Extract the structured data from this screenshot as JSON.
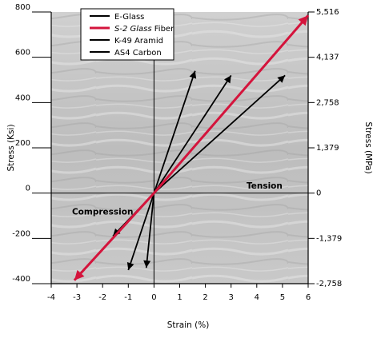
{
  "chart_data": {
    "type": "line",
    "xlabel": "Strain (%)",
    "ylabel": "Stress (Ksi)",
    "y2label": "Stress (MPa)",
    "xlim": [
      -4,
      6
    ],
    "ylim": [
      -400,
      800
    ],
    "x_ticks": [
      -4,
      -3,
      -2,
      -1,
      0,
      1,
      2,
      3,
      4,
      5,
      6
    ],
    "y_ticks": [
      -400,
      -200,
      0,
      200,
      400,
      600,
      800
    ],
    "y2_ticks": [
      {
        "value": -400,
        "label": "-2,758"
      },
      {
        "value": -200,
        "label": "-1,379"
      },
      {
        "value": 0,
        "label": "0"
      },
      {
        "value": 200,
        "label": "1,379"
      },
      {
        "value": 400,
        "label": "2,758"
      },
      {
        "value": 600,
        "label": "4,137"
      },
      {
        "value": 800,
        "label": "5,516"
      }
    ],
    "grid": false,
    "legend_position": "top-left",
    "series": [
      {
        "name": "E-Glass",
        "color": "#000000",
        "points": [
          [
            -1.0,
            -340
          ],
          [
            0,
            0
          ],
          [
            1.6,
            540
          ]
        ]
      },
      {
        "name": "S-2 Glass Fiber",
        "color": "#d4143c",
        "points": [
          [
            -3.1,
            -385
          ],
          [
            0,
            0
          ],
          [
            6.0,
            785
          ]
        ]
      },
      {
        "name": "K-49 Aramid",
        "color": "#000000",
        "points": [
          [
            -0.3,
            -330
          ],
          [
            0,
            0
          ],
          [
            3.0,
            520
          ]
        ]
      },
      {
        "name": "AS4 Carbon",
        "color": "#000000",
        "points": [
          [
            -1.6,
            -190
          ],
          [
            0,
            0
          ],
          [
            5.1,
            520
          ]
        ]
      }
    ],
    "annotations": [
      {
        "text": "Tension",
        "x": 4.3,
        "y": 20
      },
      {
        "text": "Compression",
        "x": -2.0,
        "y": -95
      }
    ]
  },
  "legend": {
    "items": [
      {
        "name": "E-Glass",
        "color": "#000000"
      },
      {
        "name": "S-2 Glass Fiber",
        "color": "#d4143c"
      },
      {
        "name": "K-49 Aramid",
        "color": "#000000"
      },
      {
        "name": "AS4 Carbon",
        "color": "#000000"
      }
    ]
  }
}
